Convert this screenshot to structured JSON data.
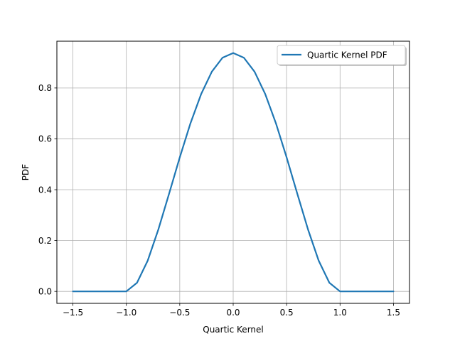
{
  "chart_data": {
    "type": "line",
    "title": "",
    "xlabel": "Quartic Kernel",
    "ylabel": "PDF",
    "xlim": [
      -1.65,
      1.65
    ],
    "ylim": [
      -0.047,
      0.984
    ],
    "xticks": [
      -1.5,
      -1.0,
      -0.5,
      0.0,
      0.5,
      1.0,
      1.5
    ],
    "xtick_labels": [
      "−1.5",
      "−1.0",
      "−0.5",
      "0.0",
      "0.5",
      "1.0",
      "1.5"
    ],
    "yticks": [
      0.0,
      0.2,
      0.4,
      0.6,
      0.8
    ],
    "ytick_labels": [
      "0.0",
      "0.2",
      "0.4",
      "0.6",
      "0.8"
    ],
    "grid": true,
    "legend_position": "top-right",
    "series": [
      {
        "name": "Quartic Kernel PDF",
        "color": "#1f77b4",
        "x": [
          -1.5,
          -1.4,
          -1.3,
          -1.2,
          -1.1,
          -1.0,
          -0.9,
          -0.8,
          -0.7,
          -0.6,
          -0.5,
          -0.4,
          -0.3,
          -0.2,
          -0.1,
          0.0,
          0.1,
          0.2,
          0.3,
          0.4,
          0.5,
          0.6,
          0.7,
          0.8,
          0.9,
          1.0,
          1.1,
          1.2,
          1.3,
          1.4,
          1.5
        ],
        "y": [
          0,
          0,
          0,
          0,
          0,
          0,
          0.034,
          0.121,
          0.244,
          0.384,
          0.527,
          0.661,
          0.776,
          0.864,
          0.919,
          0.9375,
          0.919,
          0.864,
          0.776,
          0.661,
          0.527,
          0.384,
          0.244,
          0.121,
          0.034,
          0,
          0,
          0,
          0,
          0,
          0
        ]
      }
    ]
  }
}
